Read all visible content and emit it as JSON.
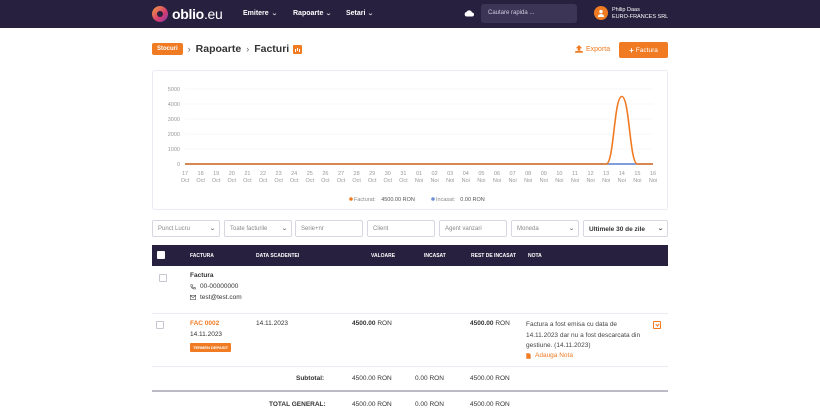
{
  "app": {
    "logo_text": "oblio",
    "logo_tld": ".eu"
  },
  "nav": {
    "items": [
      {
        "label": "Emitere"
      },
      {
        "label": "Rapoarte"
      },
      {
        "label": "Setari"
      }
    ]
  },
  "search": {
    "placeholder": "Cautare rapida ..."
  },
  "user": {
    "name": "Philip Daas",
    "company": "EURO-FRANCES SRL"
  },
  "breadcrumb": {
    "badge": "Stocuri",
    "items": [
      "Rapoarte",
      "Facturi"
    ]
  },
  "actions": {
    "export_label": "Exporta",
    "factura_label": "Factura"
  },
  "colors": {
    "accent": "#f07b23",
    "navy": "#27203f",
    "incasat": "#6f8fd6"
  },
  "chart_data": {
    "type": "line",
    "x": [
      "17 Oct",
      "18 Oct",
      "19 Oct",
      "20 Oct",
      "21 Oct",
      "22 Oct",
      "23 Oct",
      "24 Oct",
      "25 Oct",
      "26 Oct",
      "27 Oct",
      "28 Oct",
      "29 Oct",
      "30 Oct",
      "31 Oct",
      "01 Nov",
      "02 Nov",
      "03 Nov",
      "04 Nov",
      "05 Nov",
      "06 Nov",
      "07 Nov",
      "08 Nov",
      "09 Nov",
      "10 Nov",
      "11 Nov",
      "12 Nov",
      "13 Nov",
      "14 Nov",
      "15 Nov",
      "16 Nov"
    ],
    "x_ticks": [
      {
        "day": "17",
        "month": "Oct"
      },
      {
        "day": "18",
        "month": "Oct"
      },
      {
        "day": "19",
        "month": "Oct"
      },
      {
        "day": "20",
        "month": "Oct"
      },
      {
        "day": "21",
        "month": "Oct"
      },
      {
        "day": "22",
        "month": "Oct"
      },
      {
        "day": "23",
        "month": "Oct"
      },
      {
        "day": "24",
        "month": "Oct"
      },
      {
        "day": "25",
        "month": "Oct"
      },
      {
        "day": "26",
        "month": "Oct"
      },
      {
        "day": "27",
        "month": "Oct"
      },
      {
        "day": "28",
        "month": "Oct"
      },
      {
        "day": "29",
        "month": "Oct"
      },
      {
        "day": "30",
        "month": "Oct"
      },
      {
        "day": "31",
        "month": "Oct"
      },
      {
        "day": "01",
        "month": "Noi"
      },
      {
        "day": "02",
        "month": "Noi"
      },
      {
        "day": "03",
        "month": "Noi"
      },
      {
        "day": "04",
        "month": "Noi"
      },
      {
        "day": "05",
        "month": "Noi"
      },
      {
        "day": "06",
        "month": "Noi"
      },
      {
        "day": "07",
        "month": "Noi"
      },
      {
        "day": "08",
        "month": "Noi"
      },
      {
        "day": "09",
        "month": "Noi"
      },
      {
        "day": "10",
        "month": "Noi"
      },
      {
        "day": "11",
        "month": "Noi"
      },
      {
        "day": "12",
        "month": "Noi"
      },
      {
        "day": "13",
        "month": "Noi"
      },
      {
        "day": "14",
        "month": "Noi"
      },
      {
        "day": "15",
        "month": "Noi"
      },
      {
        "day": "16",
        "month": "Noi"
      }
    ],
    "y_ticks": [
      "0",
      "1000",
      "2000",
      "3000",
      "4000",
      "5000"
    ],
    "ylim": [
      0,
      5000
    ],
    "series": [
      {
        "name": "Facturat",
        "total": "4500.00 RON",
        "color": "#f07b23",
        "values": [
          0,
          0,
          0,
          0,
          0,
          0,
          0,
          0,
          0,
          0,
          0,
          0,
          0,
          0,
          0,
          0,
          0,
          0,
          0,
          0,
          0,
          0,
          0,
          0,
          0,
          0,
          0,
          0,
          4500,
          0,
          0
        ]
      },
      {
        "name": "Incasat",
        "total": "0.00 RON",
        "color": "#6f8fd6",
        "values": [
          0,
          0,
          0,
          0,
          0,
          0,
          0,
          0,
          0,
          0,
          0,
          0,
          0,
          0,
          0,
          0,
          0,
          0,
          0,
          0,
          0,
          0,
          0,
          0,
          0,
          0,
          0,
          0,
          0,
          0,
          0
        ]
      }
    ],
    "legend_position": "bottom-center",
    "grid": true
  },
  "filters": {
    "punct_lucru": "Punct Lucru",
    "toate_facturile": "Toate facturile",
    "serie_nr": "Serie+nr",
    "client": "Client",
    "agent_vanzari": "Agent vanzari",
    "moneda": "Moneda",
    "period": "Ultimele 30 de zile"
  },
  "table": {
    "headers": {
      "factura": "FACTURA",
      "data_scadentei": "DATA SCADENTEI",
      "valoare": "VALOARE",
      "incasat": "INCASAT",
      "rest_de_incasat": "REST DE INCASAT",
      "nota": "NOTA"
    },
    "client_row": {
      "name": "Factura",
      "phone": "00-00000000",
      "email": "test@test.com"
    },
    "invoice_row": {
      "number": "FAC 0002",
      "date": "14.11.2023",
      "tag": "TERMEN DEPASIT",
      "due_date": "14.11.2023",
      "value": "4500.00",
      "value_currency": "RON",
      "rest": "4500.00",
      "rest_currency": "RON",
      "note": "Factura a fost emisa cu data de 14.11.2023 dar nu a fost descarcata din gestiune. (14.11.2023)",
      "add_note": "Adauga Nota"
    },
    "subtotal": {
      "label": "Subtotal:",
      "value": "4500.00 RON",
      "incasat": "0.00 RON",
      "rest": "4500.00 RON"
    },
    "total": {
      "label": "TOTAL GENERAL:",
      "value": "4500.00 RON",
      "incasat": "0.00 RON",
      "rest": "4500.00 RON"
    }
  }
}
